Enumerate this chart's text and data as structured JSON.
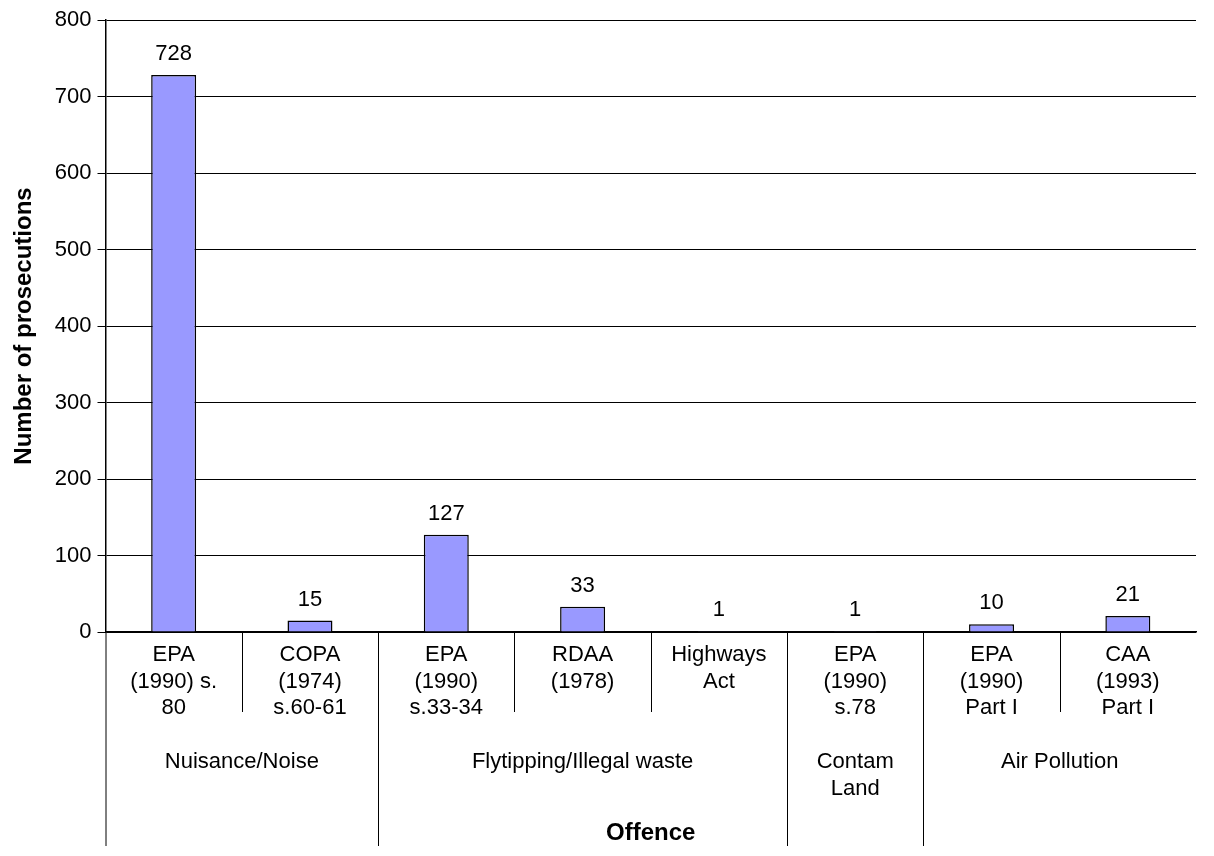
{
  "chart_data": {
    "type": "bar",
    "xlabel": "Offence",
    "ylabel": "Number of prosecutions",
    "categories": [
      "EPA (1990) s. 80",
      "COPA (1974) s.60-61",
      "EPA (1990) s.33-34",
      "RDAA (1978)",
      "Highways Act",
      "EPA (1990) s.78",
      "EPA (1990) Part I",
      "CAA (1993) Part I"
    ],
    "values": [
      728,
      15,
      127,
      33,
      1,
      1,
      10,
      21
    ],
    "color": "#9999ff",
    "ylim": [
      0,
      800
    ],
    "yticks": [
      0,
      100,
      200,
      300,
      400,
      500,
      600,
      700,
      800
    ],
    "grid": "y",
    "legend": false,
    "data_labels": true,
    "annotations": [
      "Nuisance/Noise",
      "Flytipping/Illegal waste",
      "Contam Land",
      "Air Pollution"
    ]
  }
}
